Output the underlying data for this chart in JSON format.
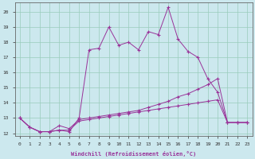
{
  "title": "",
  "xlabel": "Windchill (Refroidissement éolien,°C)",
  "ylabel": "",
  "bg_color": "#cce8ee",
  "grid_color": "#99ccbb",
  "line_color": "#993399",
  "xlim": [
    -0.5,
    23.5
  ],
  "ylim": [
    11.8,
    20.6
  ],
  "yticks": [
    12,
    13,
    14,
    15,
    16,
    17,
    18,
    19,
    20
  ],
  "xticks": [
    0,
    1,
    2,
    3,
    4,
    5,
    6,
    7,
    8,
    9,
    10,
    11,
    12,
    13,
    14,
    15,
    16,
    17,
    18,
    19,
    20,
    21,
    22,
    23
  ],
  "series": [
    [
      13.0,
      12.4,
      12.1,
      12.1,
      12.2,
      12.1,
      13.0,
      17.5,
      17.6,
      19.0,
      17.8,
      18.0,
      17.5,
      18.7,
      18.5,
      20.3,
      18.2,
      17.4,
      17.0,
      15.6,
      14.7,
      12.7,
      12.7,
      12.7
    ],
    [
      13.0,
      12.4,
      12.1,
      12.1,
      12.5,
      12.3,
      12.9,
      13.0,
      13.1,
      13.2,
      13.3,
      13.4,
      13.5,
      13.7,
      13.9,
      14.1,
      14.4,
      14.6,
      14.9,
      15.2,
      15.6,
      12.7,
      12.7,
      12.7
    ],
    [
      13.0,
      12.4,
      12.1,
      12.1,
      12.2,
      12.2,
      12.8,
      12.9,
      13.0,
      13.1,
      13.2,
      13.3,
      13.4,
      13.5,
      13.6,
      13.7,
      13.8,
      13.9,
      14.0,
      14.1,
      14.2,
      12.7,
      12.7,
      12.7
    ]
  ]
}
